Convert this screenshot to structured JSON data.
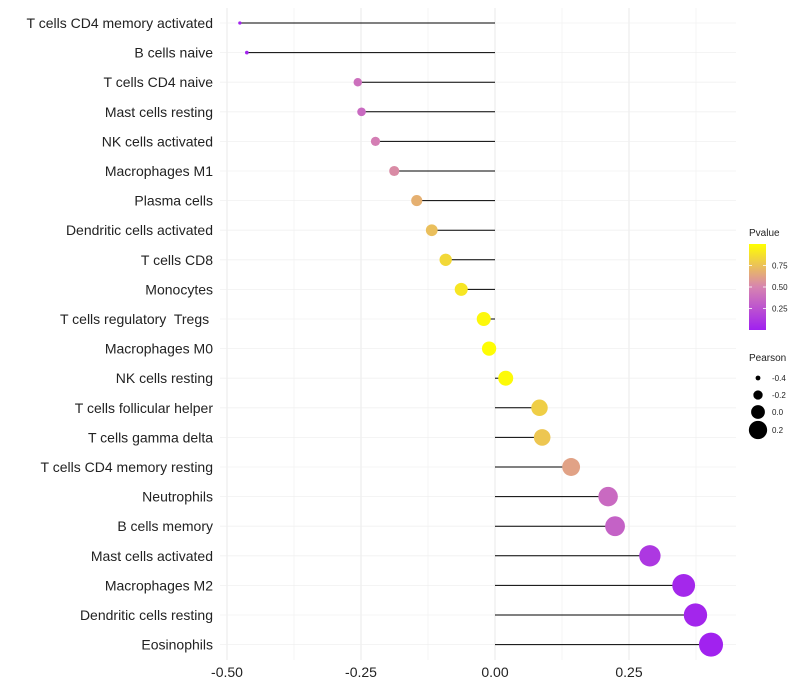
{
  "chart_data": {
    "type": "lollipop",
    "categories": [
      "T cells CD4 memory activated",
      "B cells naive",
      "T cells CD4 naive",
      "Mast cells resting",
      "NK cells activated",
      "Macrophages M1",
      "Plasma cells",
      "Dendritic cells activated",
      "T cells CD8",
      "Monocytes",
      "T cells regulatory  Tregs ",
      "Macrophages M0",
      "NK cells resting",
      "T cells follicular helper",
      "T cells gamma delta",
      "T cells CD4 memory resting",
      "Neutrophils",
      "B cells memory",
      "Mast cells activated",
      "Macrophages M2",
      "Dendritic cells resting",
      "Eosinophils"
    ],
    "pearson": [
      -0.476,
      -0.463,
      -0.256,
      -0.249,
      -0.223,
      -0.188,
      -0.146,
      -0.118,
      -0.092,
      -0.063,
      -0.021,
      -0.011,
      0.02,
      0.083,
      0.088,
      0.142,
      0.211,
      0.224,
      0.289,
      0.352,
      0.374,
      0.403
    ],
    "pvalue": [
      0.01,
      0.02,
      0.4,
      0.37,
      0.47,
      0.53,
      0.68,
      0.74,
      0.84,
      0.9,
      0.97,
      0.99,
      0.98,
      0.8,
      0.77,
      0.62,
      0.37,
      0.33,
      0.12,
      0.04,
      0.03,
      0.01
    ],
    "xlim": [
      -0.5,
      0.45
    ],
    "x_ticks": [
      -0.5,
      -0.25,
      0.0,
      0.25
    ],
    "x_tick_labels": [
      "-0.50",
      "-0.25",
      "0.00",
      "0.25"
    ],
    "xlabel": "",
    "ylabel": "",
    "legend": {
      "pvalue": {
        "title": "Pvalue",
        "range": [
          0.0,
          1.0
        ],
        "ticks": [
          0.75,
          0.5,
          0.25
        ],
        "tick_labels": [
          "0.75",
          "0.50",
          "0.25"
        ],
        "low_color": "#a020f0",
        "mid_color": "#d784b0",
        "high_color": "#ffff00"
      },
      "pearson": {
        "title": "Pearson",
        "values": [
          -0.4,
          -0.2,
          0.0,
          0.2
        ],
        "labels": [
          "-0.4",
          "-0.2",
          "0.0",
          "0.2"
        ]
      }
    },
    "segment_color": "#000000",
    "grid_color": "#ebebeb"
  }
}
